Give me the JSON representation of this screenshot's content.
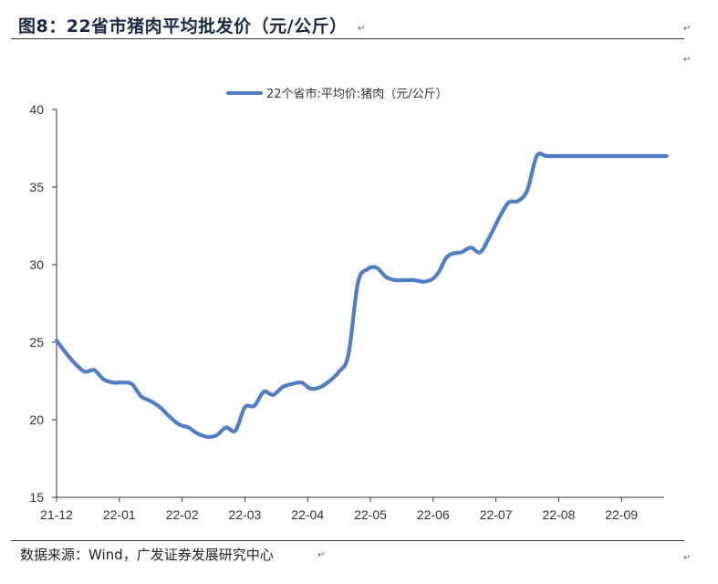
{
  "figure": {
    "title": "图8：22省市猪肉平均批发价（元/公斤）",
    "source": "数据来源：Wind，广发证券发展研究中心",
    "paragraph_mark": "↵"
  },
  "chart_data": {
    "type": "line",
    "title": "",
    "xlabel": "",
    "ylabel": "",
    "ylim": [
      15,
      40
    ],
    "yticks": [
      15,
      20,
      25,
      30,
      35,
      40
    ],
    "xtick_labels": [
      "21-12",
      "22-01",
      "22-02",
      "22-03",
      "22-04",
      "22-05",
      "22-06",
      "22-07",
      "22-08",
      "22-09"
    ],
    "grid": false,
    "legend_position": "top",
    "line_color": "#4f7ec2",
    "series": [
      {
        "name": "22个省市:平均价:猪肉（元/公斤）",
        "x": [
          0,
          0.15,
          0.3,
          0.45,
          0.6,
          0.75,
          0.9,
          1.05,
          1.2,
          1.35,
          1.5,
          1.65,
          1.8,
          1.95,
          2.1,
          2.25,
          2.4,
          2.55,
          2.7,
          2.85,
          3.0,
          3.15,
          3.3,
          3.45,
          3.6,
          3.75,
          3.9,
          4.05,
          4.2,
          4.35,
          4.5,
          4.65,
          4.8,
          4.95,
          5.1,
          5.25,
          5.4,
          5.55,
          5.7,
          5.85,
          6.0,
          6.1,
          6.2,
          6.3,
          6.45,
          6.6,
          6.75,
          6.9,
          7.05,
          7.2,
          7.35,
          7.5,
          7.65,
          7.8,
          7.95,
          8.1,
          8.25,
          8.4,
          8.55,
          8.7,
          8.85,
          9.0,
          9.15,
          9.3,
          9.45,
          9.6,
          9.72
        ],
        "y": [
          25.1,
          24.3,
          23.6,
          23.1,
          23.2,
          22.6,
          22.4,
          22.4,
          22.3,
          21.5,
          21.2,
          20.8,
          20.2,
          19.7,
          19.5,
          19.1,
          18.9,
          19.0,
          19.5,
          19.3,
          20.8,
          20.9,
          21.8,
          21.6,
          22.1,
          22.3,
          22.4,
          22.0,
          22.1,
          22.5,
          23.1,
          24.2,
          28.8,
          29.7,
          29.8,
          29.2,
          29.0,
          29.0,
          29.0,
          28.9,
          29.1,
          29.6,
          30.4,
          30.7,
          30.8,
          31.1,
          30.8,
          31.8,
          33.0,
          34.0,
          34.1,
          34.8,
          37.0,
          37.0,
          37.0,
          37.0,
          37.0,
          37.0,
          37.0,
          37.0,
          37.0,
          37.0,
          37.0,
          37.0,
          37.0,
          37.0,
          37.0
        ]
      }
    ]
  }
}
